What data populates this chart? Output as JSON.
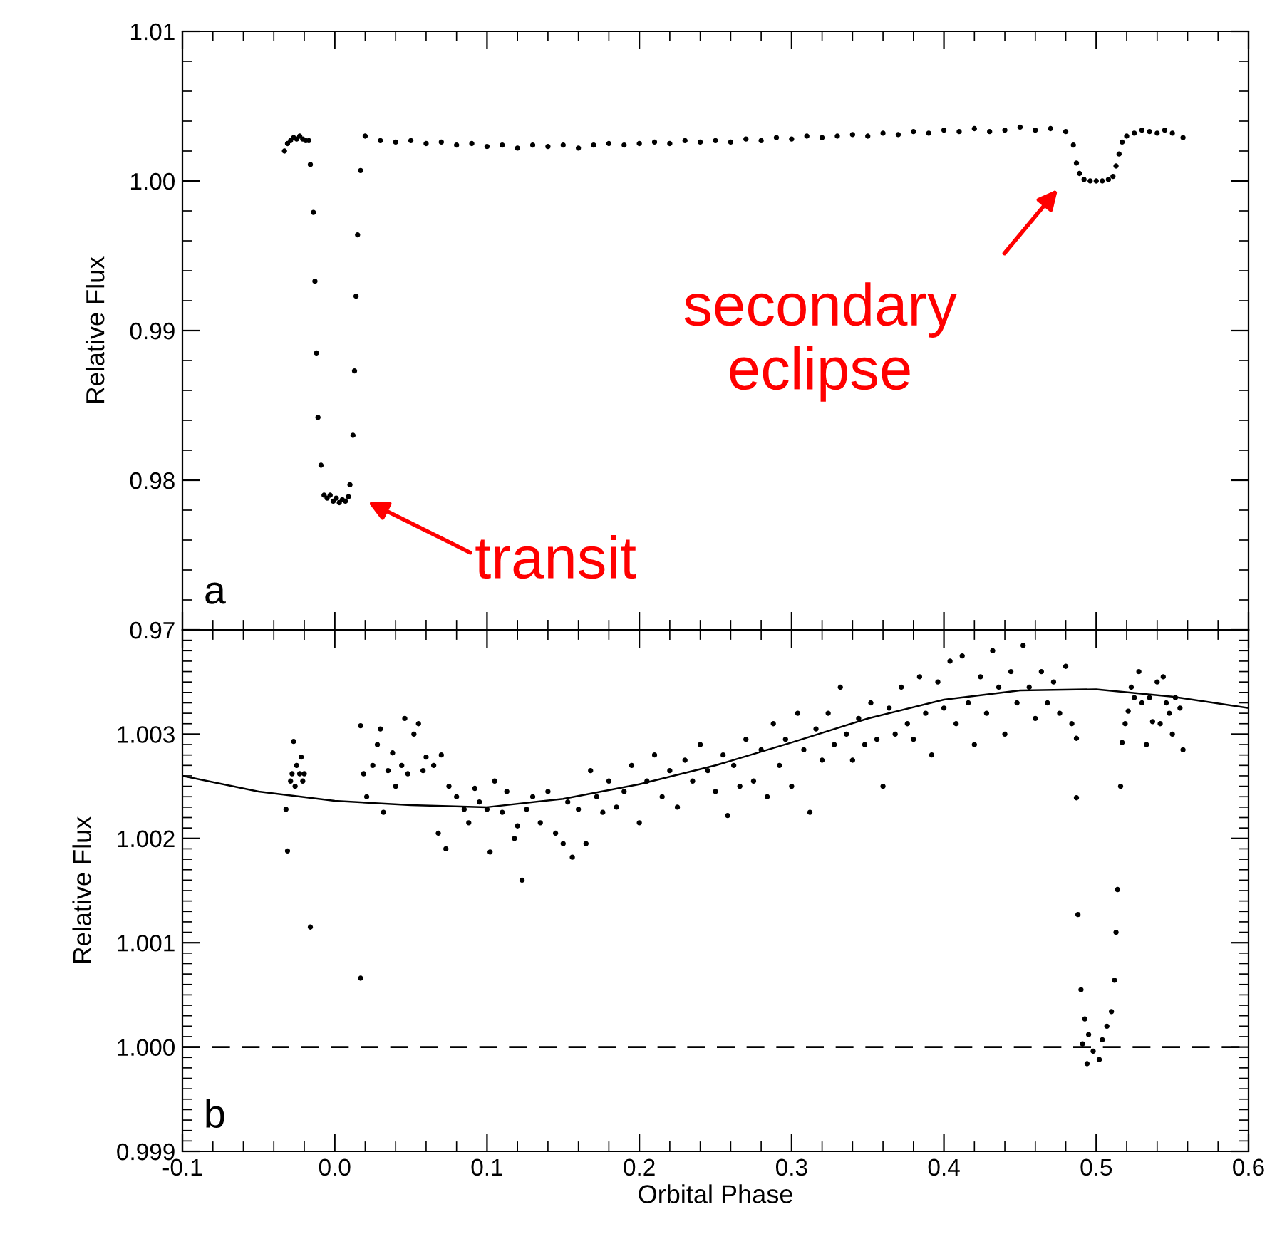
{
  "chart_data": [
    {
      "type": "scatter",
      "ylabel": "Relative Flux",
      "xlim": [
        -0.1,
        0.6
      ],
      "ylim": [
        0.97,
        1.01
      ],
      "xticks": [
        -0.1,
        0.0,
        0.1,
        0.2,
        0.3,
        0.4,
        0.5,
        0.6
      ],
      "yticks": [
        {
          "value": 0.97,
          "label": "0.97"
        },
        {
          "value": 0.98,
          "label": "0.98"
        },
        {
          "value": 0.99,
          "label": "0.99"
        },
        {
          "value": 1.0,
          "label": "1.00"
        },
        {
          "value": 1.01,
          "label": "1.01"
        }
      ],
      "tick_labels": "y",
      "marker": "circle",
      "grid": false,
      "legend": false,
      "annotations": [
        "a",
        "transit",
        "secondary\neclipse"
      ],
      "series": [
        {
          "color": "#000000",
          "x": [
            -0.033,
            -0.031,
            -0.029,
            -0.027,
            -0.025,
            -0.023,
            -0.021,
            -0.019,
            -0.017,
            -0.016,
            -0.014,
            -0.013,
            -0.012,
            -0.011,
            -0.009,
            -0.007,
            -0.005,
            -0.003,
            -0.001,
            0.001,
            0.003,
            0.005,
            0.007,
            0.009,
            0.01,
            0.012,
            0.013,
            0.014,
            0.015,
            0.017,
            0.02,
            0.03,
            0.04,
            0.05,
            0.06,
            0.07,
            0.08,
            0.09,
            0.1,
            0.11,
            0.12,
            0.13,
            0.14,
            0.15,
            0.16,
            0.17,
            0.18,
            0.19,
            0.2,
            0.21,
            0.22,
            0.23,
            0.24,
            0.25,
            0.26,
            0.27,
            0.28,
            0.29,
            0.3,
            0.31,
            0.32,
            0.33,
            0.34,
            0.35,
            0.36,
            0.37,
            0.38,
            0.39,
            0.4,
            0.41,
            0.42,
            0.43,
            0.44,
            0.45,
            0.46,
            0.47,
            0.48,
            0.485,
            0.487,
            0.489,
            0.492,
            0.496,
            0.5,
            0.504,
            0.508,
            0.511,
            0.513,
            0.515,
            0.517,
            0.52,
            0.525,
            0.53,
            0.535,
            0.54,
            0.545,
            0.55,
            0.557
          ],
          "values": [
            1.002,
            1.0025,
            1.0027,
            1.0029,
            1.0028,
            1.003,
            1.0028,
            1.0027,
            1.0027,
            1.0011,
            0.9979,
            0.9933,
            0.9885,
            0.9842,
            0.981,
            0.979,
            0.9788,
            0.979,
            0.9786,
            0.9788,
            0.9785,
            0.9787,
            0.9786,
            0.9789,
            0.9797,
            0.983,
            0.9873,
            0.9923,
            0.9964,
            1.0007,
            1.003,
            1.0027,
            1.0026,
            1.0027,
            1.0025,
            1.0026,
            1.0024,
            1.0025,
            1.0023,
            1.0024,
            1.0022,
            1.0024,
            1.0023,
            1.0024,
            1.0022,
            1.0024,
            1.0025,
            1.0024,
            1.0025,
            1.0026,
            1.0025,
            1.0027,
            1.0026,
            1.0027,
            1.0026,
            1.0028,
            1.0027,
            1.0029,
            1.0028,
            1.003,
            1.0029,
            1.003,
            1.0031,
            1.003,
            1.0032,
            1.0031,
            1.0033,
            1.0032,
            1.0034,
            1.0033,
            1.0035,
            1.0033,
            1.0034,
            1.0036,
            1.0034,
            1.0035,
            1.0033,
            1.0024,
            1.0012,
            1.0005,
            1.0001,
            1.0,
            1.0,
            1.0,
            1.0001,
            1.0003,
            1.001,
            1.0018,
            1.0026,
            1.003,
            1.0032,
            1.0034,
            1.0033,
            1.0032,
            1.0034,
            1.0032,
            1.0029
          ]
        }
      ]
    },
    {
      "type": "scatter",
      "xlabel": "Orbital Phase",
      "ylabel": "Relative Flux",
      "xlim": [
        -0.1,
        0.6
      ],
      "ylim": [
        0.999,
        1.004
      ],
      "xticks": [
        -0.1,
        {
          "value": 0.0,
          "label": "0.0"
        },
        0.1,
        0.2,
        0.3,
        0.4,
        0.5,
        0.6
      ],
      "yticks": [
        {
          "value": 0.999,
          "label": "0.999"
        },
        {
          "value": 1.0,
          "label": "1.000"
        },
        {
          "value": 1.001,
          "label": "1.001"
        },
        {
          "value": 1.002,
          "label": "1.002"
        },
        {
          "value": 1.003,
          "label": "1.003"
        }
      ],
      "marker": "circle",
      "grid": false,
      "legend": false,
      "annotations": [
        "b"
      ],
      "ref_lines": [
        {
          "axis": "y",
          "value": 1.0,
          "color": "#000000",
          "line_style": "dashed"
        }
      ],
      "series": [
        {
          "type": "line",
          "marker": "none",
          "color": "#000000",
          "x": [
            -0.1,
            -0.05,
            0.0,
            0.05,
            0.1,
            0.15,
            0.2,
            0.25,
            0.3,
            0.35,
            0.4,
            0.45,
            0.5,
            0.55,
            0.6
          ],
          "values": [
            1.0026,
            1.00245,
            1.00236,
            1.00232,
            1.0023,
            1.00238,
            1.00252,
            1.0027,
            1.00292,
            1.00315,
            1.00333,
            1.00342,
            1.00343,
            1.00336,
            1.00325
          ]
        },
        {
          "color": "#000000",
          "x": [
            -0.032,
            -0.031,
            -0.029,
            -0.028,
            -0.027,
            -0.026,
            -0.025,
            -0.023,
            -0.022,
            -0.021,
            -0.02,
            -0.016,
            0.017,
            0.017,
            0.019,
            0.021,
            0.025,
            0.028,
            0.03,
            0.032,
            0.035,
            0.038,
            0.04,
            0.044,
            0.046,
            0.048,
            0.052,
            0.055,
            0.058,
            0.06,
            0.065,
            0.068,
            0.07,
            0.073,
            0.075,
            0.08,
            0.085,
            0.088,
            0.092,
            0.095,
            0.1,
            0.102,
            0.105,
            0.11,
            0.113,
            0.118,
            0.12,
            0.123,
            0.126,
            0.13,
            0.135,
            0.14,
            0.145,
            0.15,
            0.153,
            0.156,
            0.16,
            0.165,
            0.168,
            0.172,
            0.176,
            0.18,
            0.185,
            0.19,
            0.195,
            0.2,
            0.205,
            0.21,
            0.215,
            0.22,
            0.225,
            0.23,
            0.235,
            0.24,
            0.245,
            0.25,
            0.255,
            0.258,
            0.262,
            0.266,
            0.27,
            0.275,
            0.28,
            0.284,
            0.288,
            0.292,
            0.296,
            0.3,
            0.304,
            0.308,
            0.312,
            0.316,
            0.32,
            0.324,
            0.328,
            0.332,
            0.336,
            0.34,
            0.344,
            0.348,
            0.352,
            0.356,
            0.36,
            0.364,
            0.368,
            0.372,
            0.376,
            0.38,
            0.384,
            0.388,
            0.392,
            0.396,
            0.4,
            0.404,
            0.408,
            0.412,
            0.416,
            0.42,
            0.424,
            0.428,
            0.432,
            0.436,
            0.44,
            0.444,
            0.448,
            0.452,
            0.456,
            0.46,
            0.464,
            0.468,
            0.472,
            0.476,
            0.48,
            0.484,
            0.487,
            0.487,
            0.488,
            0.49,
            0.4925,
            0.495,
            0.491,
            0.494,
            0.498,
            0.502,
            0.504,
            0.507,
            0.51,
            0.512,
            0.513,
            0.514,
            0.516,
            0.517,
            0.519,
            0.521,
            0.523,
            0.525,
            0.528,
            0.53,
            0.533,
            0.535,
            0.537,
            0.54,
            0.542,
            0.544,
            0.546,
            0.548,
            0.55,
            0.552,
            0.555,
            0.557
          ],
          "values": [
            1.00228,
            1.00188,
            1.00255,
            1.00262,
            1.00293,
            1.0025,
            1.0027,
            1.00262,
            1.00278,
            1.00255,
            1.00262,
            1.00115,
            1.00066,
            1.00308,
            1.00262,
            1.0024,
            1.0027,
            1.0029,
            1.00305,
            1.00225,
            1.00265,
            1.00282,
            1.0025,
            1.0027,
            1.00315,
            1.00262,
            1.003,
            1.0031,
            1.00265,
            1.00278,
            1.0027,
            1.00205,
            1.0028,
            1.0019,
            1.0025,
            1.0024,
            1.00228,
            1.00215,
            1.00248,
            1.00235,
            1.00228,
            1.00187,
            1.00255,
            1.00225,
            1.00245,
            1.002,
            1.00212,
            1.0016,
            1.00228,
            1.0024,
            1.00215,
            1.00245,
            1.00205,
            1.00195,
            1.00235,
            1.00182,
            1.00228,
            1.00195,
            1.00265,
            1.0024,
            1.00225,
            1.00255,
            1.0023,
            1.00245,
            1.0027,
            1.00215,
            1.00255,
            1.0028,
            1.0024,
            1.00265,
            1.0023,
            1.00275,
            1.00255,
            1.0029,
            1.00265,
            1.00245,
            1.0028,
            1.00222,
            1.0027,
            1.0025,
            1.00295,
            1.00255,
            1.00285,
            1.0024,
            1.0031,
            1.0027,
            1.00295,
            1.0025,
            1.0032,
            1.00285,
            1.00225,
            1.00305,
            1.00275,
            1.0032,
            1.0029,
            1.00345,
            1.003,
            1.00275,
            1.00315,
            1.0029,
            1.0033,
            1.00295,
            1.0025,
            1.00325,
            1.003,
            1.00345,
            1.0031,
            1.00295,
            1.00355,
            1.0032,
            1.0028,
            1.0035,
            1.00325,
            1.0037,
            1.0031,
            1.00375,
            1.0033,
            1.0029,
            1.00355,
            1.0032,
            1.0038,
            1.00345,
            1.003,
            1.0036,
            1.0033,
            1.00385,
            1.00345,
            1.00315,
            1.0036,
            1.0033,
            1.0035,
            1.0032,
            1.00365,
            1.0031,
            1.00296,
            1.00239,
            1.00127,
            1.00055,
            1.00027,
            1.00012,
            1.00003,
            0.99984,
            0.99996,
            0.99988,
            1.00007,
            1.0002,
            1.00034,
            1.00064,
            1.0011,
            1.00151,
            1.0025,
            1.00292,
            1.0031,
            1.00322,
            1.00345,
            1.00335,
            1.0036,
            1.0033,
            1.0029,
            1.00335,
            1.00312,
            1.0035,
            1.0031,
            1.00355,
            1.0033,
            1.0032,
            1.003,
            1.00335,
            1.00325,
            1.00285
          ]
        }
      ]
    }
  ]
}
